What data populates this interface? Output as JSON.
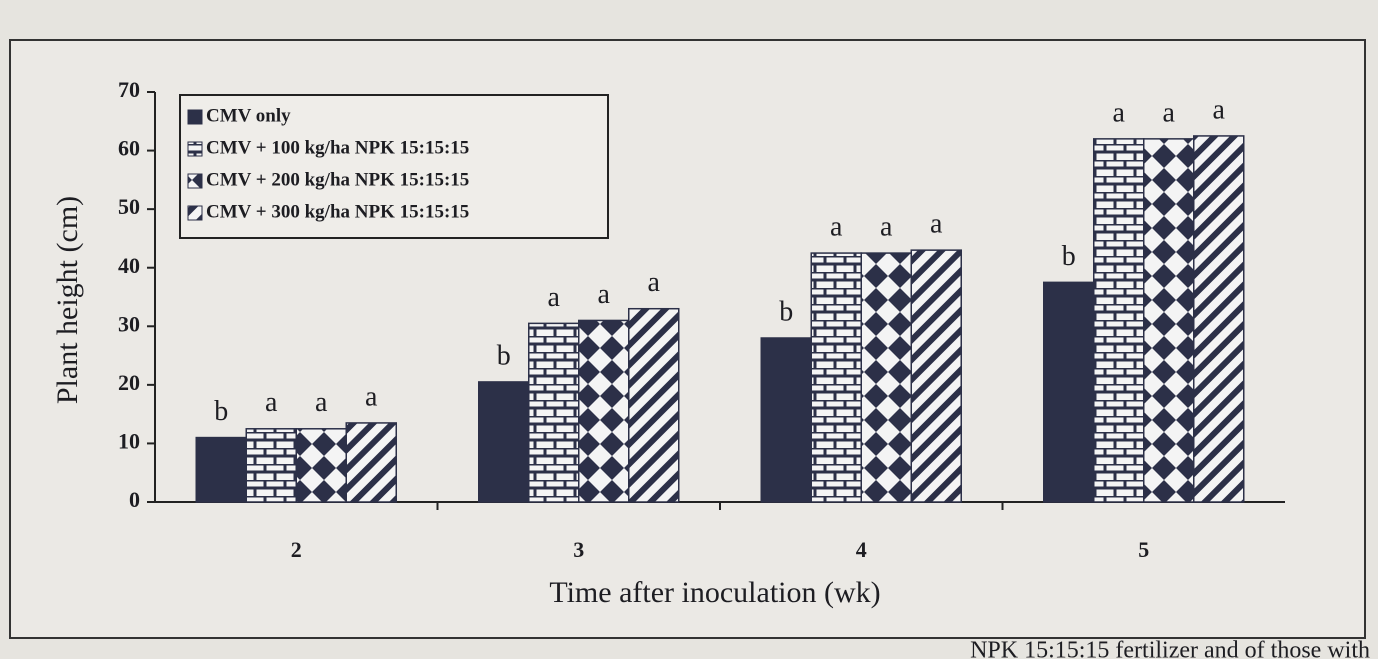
{
  "chart_data": {
    "type": "bar",
    "y_label": "Plant height (cm)",
    "x_label": "Time after inoculation (wk)",
    "categories": [
      "2",
      "3",
      "4",
      "5"
    ],
    "series": [
      {
        "name": "CMV only",
        "color": "#2c3048",
        "pattern": "solid",
        "values": [
          11,
          20.5,
          28,
          37.5
        ],
        "letters": [
          "b",
          "b",
          "b",
          "b"
        ]
      },
      {
        "name": "CMV + 100 kg/ha NPK 15:15:15",
        "color": "#2c3048",
        "pattern": "brick",
        "values": [
          12.5,
          30.5,
          42.5,
          62
        ],
        "letters": [
          "a",
          "a",
          "a",
          "a"
        ]
      },
      {
        "name": "CMV + 200 kg/ha NPK 15:15:15",
        "color": "#2c3048",
        "pattern": "diamond",
        "values": [
          12.5,
          31,
          42.5,
          62
        ],
        "letters": [
          "a",
          "a",
          "a",
          "a"
        ]
      },
      {
        "name": "CMV + 300 kg/ha NPK 15:15:15",
        "color": "#2c3048",
        "pattern": "diagonal",
        "values": [
          13.5,
          33,
          43,
          62.5
        ],
        "letters": [
          "a",
          "a",
          "a",
          "a"
        ]
      }
    ],
    "ylim": [
      0,
      70
    ],
    "yticks": [
      0,
      10,
      20,
      30,
      40,
      50,
      60,
      70
    ],
    "legend": "upper left",
    "caption": "NPK 15:15:15 fertilizer and of those with"
  }
}
